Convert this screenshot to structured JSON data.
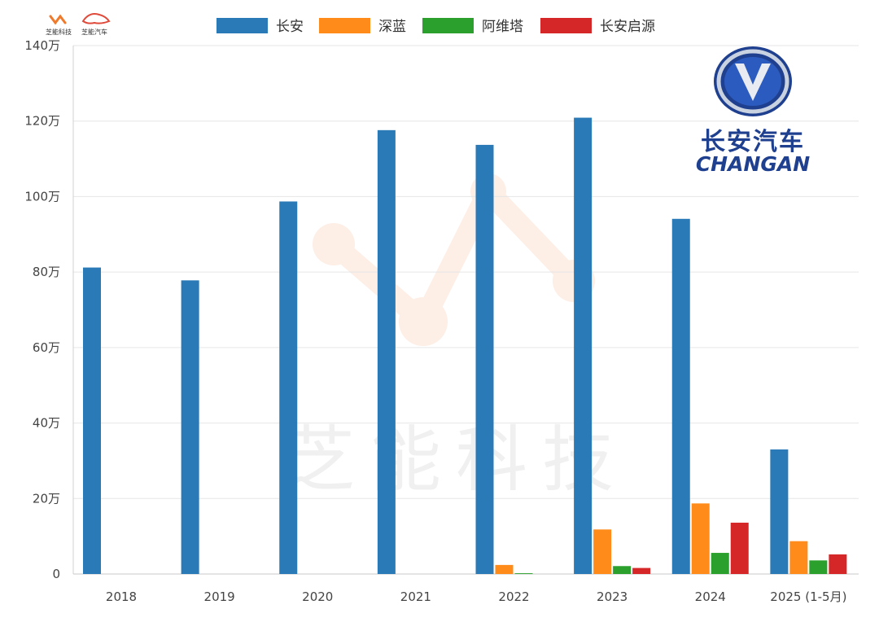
{
  "branding": {
    "corner_logo_left": "芝能科技",
    "corner_logo_right": "芝能汽车",
    "watermark": "芝能科技",
    "brand_logo_cn": "长安汽车",
    "brand_logo_en": "CHANGAN"
  },
  "colors": {
    "长安": "#2a7ab8",
    "深蓝": "#ff8c1a",
    "阿维塔": "#2ca02c",
    "长安启源": "#d62728",
    "grid": "#e6e6e6",
    "logo": "#1f3f8f"
  },
  "chart_data": {
    "type": "bar",
    "title": "",
    "xlabel": "",
    "ylabel": "",
    "categories": [
      "2018",
      "2019",
      "2020",
      "2021",
      "2022",
      "2023",
      "2024",
      "2025 (1-5月)"
    ],
    "series": [
      {
        "name": "长安",
        "values": [
          81.2,
          77.8,
          98.7,
          117.6,
          113.7,
          120.9,
          94.1,
          33.0
        ]
      },
      {
        "name": "深蓝",
        "values": [
          0,
          0,
          0,
          0,
          2.4,
          11.8,
          18.7,
          8.7
        ]
      },
      {
        "name": "阿维塔",
        "values": [
          0,
          0,
          0,
          0,
          0.2,
          2.1,
          5.6,
          3.6
        ]
      },
      {
        "name": "长安启源",
        "values": [
          0,
          0,
          0,
          0,
          0,
          1.6,
          13.6,
          5.2
        ]
      }
    ],
    "ylim": [
      0,
      140
    ],
    "yticks": [
      {
        "value": 0,
        "label": "0"
      },
      {
        "value": 20,
        "label": "20万"
      },
      {
        "value": 40,
        "label": "40万"
      },
      {
        "value": 60,
        "label": "60万"
      },
      {
        "value": 80,
        "label": "80万"
      },
      {
        "value": 100,
        "label": "100万"
      },
      {
        "value": 120,
        "label": "120万"
      },
      {
        "value": 140,
        "label": "140万"
      }
    ],
    "grid": true,
    "legend_position": "top-center"
  }
}
